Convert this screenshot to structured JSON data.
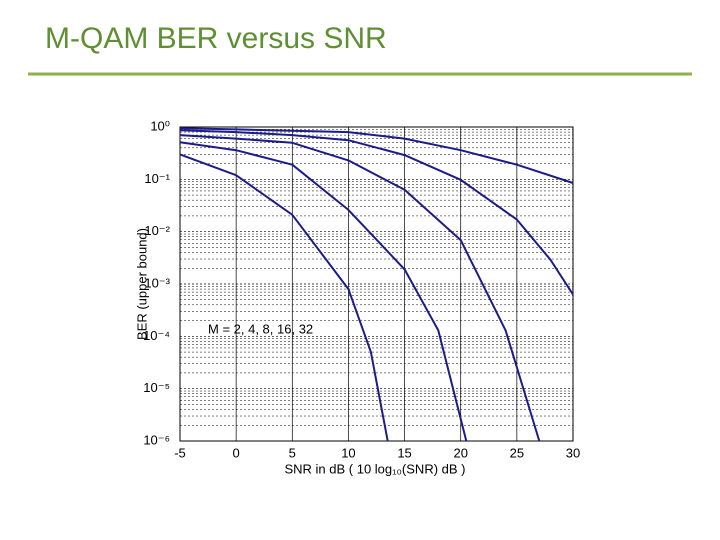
{
  "chart_data": {
    "type": "line",
    "title": "M-QAM BER versus SNR",
    "xlabel": "SNR  in  dB  ( 10 log₁₀(SNR)  dB )",
    "ylabel": "BER  (upper  bound)",
    "annotation": "M = 2, 4, 8, 16, 32",
    "xlim": [
      -5,
      30
    ],
    "xticks": [
      -5,
      0,
      5,
      10,
      15,
      20,
      25,
      30
    ],
    "ylim": [
      1e-06,
      1
    ],
    "yticks": [
      {
        "value": 1,
        "label": "10⁰"
      },
      {
        "value": 0.1,
        "label": "10⁻¹"
      },
      {
        "value": 0.01,
        "label": "10⁻²"
      },
      {
        "value": 0.001,
        "label": "10⁻³"
      },
      {
        "value": 0.0001,
        "label": "10⁻⁴"
      },
      {
        "value": 1e-05,
        "label": "10⁻⁵"
      },
      {
        "value": 1e-06,
        "label": "10⁻⁶"
      }
    ],
    "log_y": true,
    "grid": true,
    "minor_grid": true,
    "series": [
      {
        "color": "#1c1c8a",
        "x": [
          -5,
          0,
          5,
          10,
          12,
          13.5
        ],
        "values": [
          0.3,
          0.12,
          0.021,
          0.0008,
          5e-05,
          1e-06
        ]
      },
      {
        "color": "#1c1c8a",
        "x": [
          -5,
          0,
          5,
          10,
          15,
          18,
          20.5
        ],
        "values": [
          0.51,
          0.36,
          0.19,
          0.026,
          0.0019,
          0.00013,
          1e-06
        ]
      },
      {
        "color": "#1c1c8a",
        "x": [
          -5,
          0,
          5,
          10,
          15,
          20,
          24,
          27
        ],
        "values": [
          0.7,
          0.6,
          0.5,
          0.23,
          0.063,
          0.0069,
          0.00013,
          1e-06
        ]
      },
      {
        "color": "#1c1c8a",
        "x": [
          -5,
          0,
          5,
          10,
          15,
          20,
          25,
          28,
          30
        ],
        "values": [
          0.87,
          0.8,
          0.7,
          0.56,
          0.29,
          0.098,
          0.017,
          0.0029,
          0.00063
        ]
      },
      {
        "color": "#1c1c8a",
        "x": [
          -5,
          0,
          5,
          10,
          15,
          20,
          25,
          30
        ],
        "values": [
          0.95,
          0.9,
          0.85,
          0.8,
          0.6,
          0.36,
          0.19,
          0.085
        ]
      }
    ]
  }
}
